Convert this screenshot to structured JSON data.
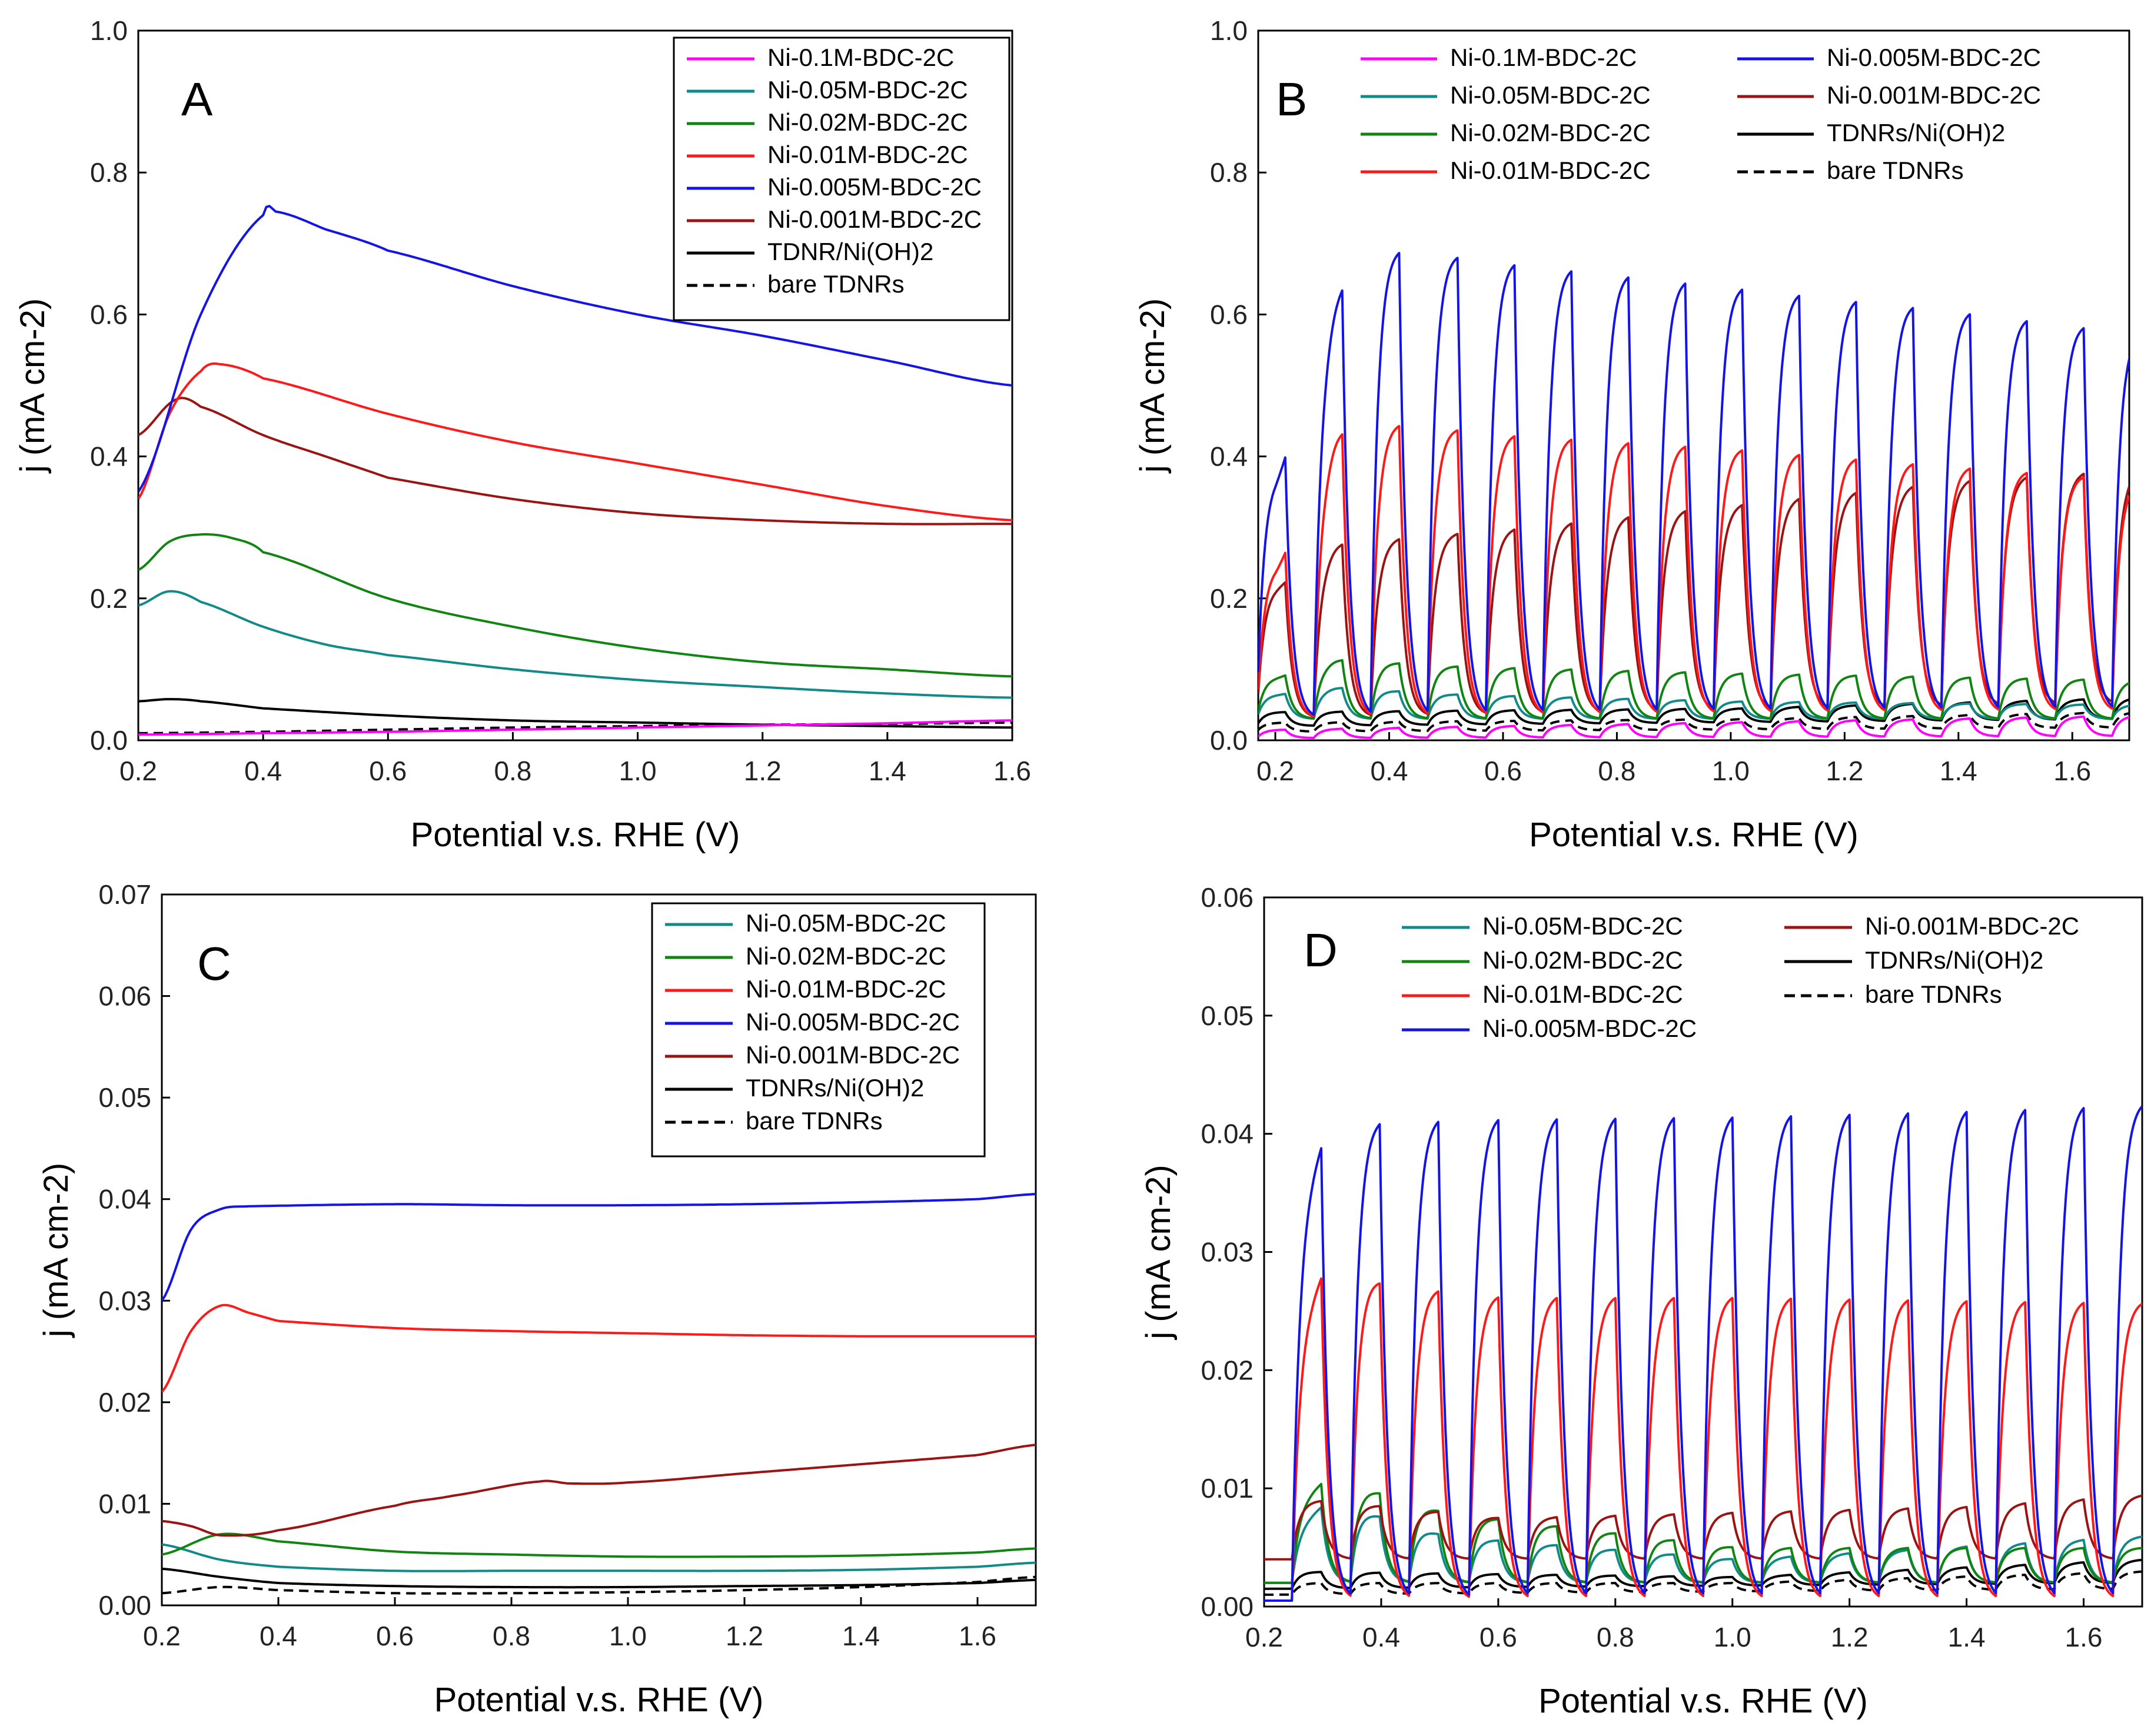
{
  "figure": {
    "panels": [
      "A",
      "B",
      "C",
      "D"
    ]
  },
  "series_defs": [
    {
      "id": "m01",
      "name": "Ni-0.1M-BDC-2C",
      "color": "#ff00ff",
      "dash": false
    },
    {
      "id": "m005",
      "name": "Ni-0.05M-BDC-2C",
      "color": "#138a8a",
      "dash": false
    },
    {
      "id": "m002",
      "name": "Ni-0.02M-BDC-2C",
      "color": "#128412",
      "dash": false
    },
    {
      "id": "m001",
      "name": "Ni-0.01M-BDC-2C",
      "color": "#ff1a1a",
      "dash": false
    },
    {
      "id": "m0005",
      "name": "Ni-0.005M-BDC-2C",
      "color": "#1414e6",
      "dash": false
    },
    {
      "id": "m0001",
      "name": "Ni-0.001M-BDC-2C",
      "color": "#9a1414",
      "dash": false
    },
    {
      "id": "tdnr",
      "name": "TDNRs/Ni(OH)2",
      "color": "#000000",
      "dash": false
    },
    {
      "id": "bare",
      "name": "bare TDNRs",
      "color": "#000000",
      "dash": true
    }
  ],
  "chart_data": [
    {
      "panel": "A",
      "type": "line",
      "xlabel": "Potential v.s. RHE (V)",
      "ylabel": "j (mA cm-2)",
      "xlim": [
        0.2,
        1.6
      ],
      "ylim": [
        0,
        1.0
      ],
      "xticks": [
        0.2,
        0.4,
        0.6,
        0.8,
        1.0,
        1.2,
        1.4,
        1.6
      ],
      "yticks": [
        0.0,
        0.2,
        0.4,
        0.6,
        0.8,
        1.0
      ],
      "xtick_labels": [
        "0.2",
        "0.4",
        "0.6",
        "0.8",
        "1.0",
        "1.2",
        "1.4",
        "1.6"
      ],
      "ytick_labels": [
        "0.0",
        "0.2",
        "0.4",
        "0.6",
        "0.8",
        "1.0"
      ],
      "legend": {
        "placement": "top-right",
        "entries": [
          "Ni-0.1M-BDC-2C",
          "Ni-0.05M-BDC-2C",
          "Ni-0.02M-BDC-2C",
          "Ni-0.01M-BDC-2C",
          "Ni-0.005M-BDC-2C",
          "Ni-0.001M-BDC-2C",
          "TDNR/Ni(OH)2",
          "bare TDNRs"
        ]
      },
      "series": [
        {
          "name": "Ni-0.1M-BDC-2C",
          "x": [
            0.2,
            0.4,
            0.6,
            0.8,
            1.0,
            1.2,
            1.4,
            1.6
          ],
          "values": [
            0.008,
            0.01,
            0.012,
            0.015,
            0.018,
            0.021,
            0.024,
            0.028
          ]
        },
        {
          "name": "Ni-0.05M-BDC-2C",
          "x": [
            0.2,
            0.25,
            0.3,
            0.4,
            0.5,
            0.6,
            0.8,
            1.0,
            1.2,
            1.4,
            1.6
          ],
          "values": [
            0.19,
            0.21,
            0.195,
            0.16,
            0.135,
            0.12,
            0.1,
            0.085,
            0.075,
            0.066,
            0.06
          ]
        },
        {
          "name": "Ni-0.02M-BDC-2C",
          "x": [
            0.2,
            0.25,
            0.3,
            0.35,
            0.4,
            0.6,
            0.8,
            1.0,
            1.2,
            1.4,
            1.6
          ],
          "values": [
            0.24,
            0.28,
            0.29,
            0.285,
            0.265,
            0.2,
            0.16,
            0.13,
            0.11,
            0.1,
            0.09
          ]
        },
        {
          "name": "Ni-0.01M-BDC-2C",
          "x": [
            0.2,
            0.25,
            0.3,
            0.33,
            0.4,
            0.6,
            0.8,
            1.0,
            1.2,
            1.4,
            1.6
          ],
          "values": [
            0.34,
            0.46,
            0.52,
            0.53,
            0.51,
            0.46,
            0.42,
            0.39,
            0.36,
            0.33,
            0.31
          ]
        },
        {
          "name": "Ni-0.005M-BDC-2C",
          "x": [
            0.2,
            0.3,
            0.4,
            0.42,
            0.5,
            0.6,
            0.8,
            1.0,
            1.2,
            1.4,
            1.6
          ],
          "values": [
            0.35,
            0.6,
            0.74,
            0.745,
            0.72,
            0.69,
            0.64,
            0.6,
            0.57,
            0.535,
            0.5
          ]
        },
        {
          "name": "Ni-0.001M-BDC-2C",
          "x": [
            0.2,
            0.26,
            0.3,
            0.4,
            0.5,
            0.6,
            0.8,
            1.0,
            1.2,
            1.4,
            1.6
          ],
          "values": [
            0.43,
            0.48,
            0.47,
            0.43,
            0.4,
            0.37,
            0.34,
            0.32,
            0.31,
            0.305,
            0.305
          ]
        },
        {
          "name": "TDNR/Ni(OH)2",
          "x": [
            0.2,
            0.25,
            0.3,
            0.4,
            0.6,
            0.8,
            1.0,
            1.2,
            1.4,
            1.6
          ],
          "values": [
            0.055,
            0.058,
            0.055,
            0.045,
            0.035,
            0.028,
            0.025,
            0.022,
            0.02,
            0.018
          ]
        },
        {
          "name": "bare TDNRs",
          "x": [
            0.2,
            0.4,
            0.6,
            0.8,
            1.0,
            1.2,
            1.4,
            1.6
          ],
          "values": [
            0.01,
            0.012,
            0.015,
            0.018,
            0.02,
            0.022,
            0.023,
            0.025
          ]
        }
      ]
    },
    {
      "panel": "B",
      "type": "line",
      "xlabel": "Potential v.s. RHE (V)",
      "ylabel": "j (mA cm-2)",
      "xlim": [
        0.17,
        1.7
      ],
      "ylim": [
        0,
        1.0
      ],
      "xticks": [
        0.2,
        0.4,
        0.6,
        0.8,
        1.0,
        1.2,
        1.4,
        1.6
      ],
      "yticks": [
        0.0,
        0.2,
        0.4,
        0.6,
        0.8,
        1.0
      ],
      "xtick_labels": [
        "0.2",
        "0.4",
        "0.6",
        "0.8",
        "1.0",
        "1.2",
        "1.4",
        "1.6"
      ],
      "ytick_labels": [
        "0.0",
        "0.2",
        "0.4",
        "0.6",
        "0.8",
        "1.0"
      ],
      "legend": {
        "placement": "top",
        "entries": [
          "Ni-0.1M-BDC-2C",
          "Ni-0.05M-BDC-2C",
          "Ni-0.02M-BDC-2C",
          "Ni-0.01M-BDC-2C",
          "Ni-0.005M-BDC-2C",
          "Ni-0.001M-BDC-2C",
          "TDNRs/Ni(OH)2",
          "bare TDNRs"
        ]
      },
      "chopped": {
        "first_on": 0.17,
        "period": 0.1,
        "duty": 0.5
      },
      "series": [
        {
          "name": "Ni-0.1M-BDC-2C",
          "on_x": [
            0.2,
            1.7
          ],
          "on_values": [
            0.015,
            0.035
          ],
          "dark_x": [
            0.2,
            1.7
          ],
          "dark_values": [
            0.003,
            0.006
          ]
        },
        {
          "name": "Ni-0.05M-BDC-2C",
          "on_x": [
            0.2,
            0.3,
            0.5,
            1.0,
            1.7
          ],
          "on_values": [
            0.065,
            0.075,
            0.065,
            0.055,
            0.05
          ],
          "dark_x": [
            0.2,
            1.7
          ],
          "dark_values": [
            0.03,
            0.03
          ]
        },
        {
          "name": "Ni-0.02M-BDC-2C",
          "on_x": [
            0.2,
            0.3,
            0.5,
            1.0,
            1.7
          ],
          "on_values": [
            0.09,
            0.115,
            0.105,
            0.095,
            0.085
          ],
          "dark_x": [
            0.2,
            1.7
          ],
          "dark_values": [
            0.03,
            0.03
          ]
        },
        {
          "name": "Ni-0.01M-BDC-2C",
          "on_x": [
            0.2,
            0.3,
            0.4,
            0.6,
            1.0,
            1.3,
            1.7
          ],
          "on_values": [
            0.25,
            0.44,
            0.45,
            0.435,
            0.415,
            0.395,
            0.37
          ],
          "dark_x": [
            0.2,
            1.7
          ],
          "dark_values": [
            0.03,
            0.04
          ]
        },
        {
          "name": "Ni-0.005M-BDC-2C",
          "on_x": [
            0.2,
            0.3,
            0.37,
            0.6,
            1.0,
            1.4,
            1.7
          ],
          "on_values": [
            0.38,
            0.64,
            0.7,
            0.68,
            0.645,
            0.61,
            0.58
          ],
          "dark_x": [
            0.2,
            1.7
          ],
          "dark_values": [
            0.03,
            0.04
          ]
        },
        {
          "name": "Ni-0.001M-BDC-2C",
          "on_x": [
            0.2,
            0.3,
            0.6,
            1.0,
            1.4,
            1.7
          ],
          "on_values": [
            0.22,
            0.28,
            0.3,
            0.335,
            0.37,
            0.385
          ],
          "dark_x": [
            0.2,
            1.7
          ],
          "dark_values": [
            0.03,
            0.05
          ]
        },
        {
          "name": "TDNRs/Ni(OH)2",
          "on_x": [
            0.2,
            1.0,
            1.7
          ],
          "on_values": [
            0.04,
            0.045,
            0.06
          ],
          "dark_x": [
            0.2,
            1.7
          ],
          "dark_values": [
            0.02,
            0.03
          ]
        },
        {
          "name": "bare TDNRs",
          "on_x": [
            0.2,
            1.0,
            1.7
          ],
          "on_values": [
            0.025,
            0.03,
            0.04
          ],
          "dark_x": [
            0.2,
            1.7
          ],
          "dark_values": [
            0.012,
            0.018
          ]
        }
      ]
    },
    {
      "panel": "C",
      "type": "line",
      "xlabel": "Potential v.s. RHE (V)",
      "ylabel": "j (mA cm-2)",
      "xlim": [
        0.2,
        1.7
      ],
      "ylim": [
        0,
        0.07
      ],
      "xticks": [
        0.2,
        0.4,
        0.6,
        0.8,
        1.0,
        1.2,
        1.4,
        1.6
      ],
      "yticks": [
        0.0,
        0.01,
        0.02,
        0.03,
        0.04,
        0.05,
        0.06,
        0.07
      ],
      "xtick_labels": [
        "0.2",
        "0.4",
        "0.6",
        "0.8",
        "1.0",
        "1.2",
        "1.4",
        "1.6"
      ],
      "ytick_labels": [
        "0.00",
        "0.01",
        "0.02",
        "0.03",
        "0.04",
        "0.05",
        "0.06",
        "0.07"
      ],
      "legend": {
        "placement": "top-right",
        "entries": [
          "Ni-0.05M-BDC-2C",
          "Ni-0.02M-BDC-2C",
          "Ni-0.01M-BDC-2C",
          "Ni-0.005M-BDC-2C",
          "Ni-0.001M-BDC-2C",
          "TDNRs/Ni(OH)2",
          "bare TDNRs"
        ]
      },
      "series": [
        {
          "name": "Ni-0.05M-BDC-2C",
          "x": [
            0.2,
            0.3,
            0.4,
            0.6,
            0.8,
            1.0,
            1.2,
            1.4,
            1.6,
            1.7
          ],
          "values": [
            0.006,
            0.0045,
            0.0038,
            0.0034,
            0.0034,
            0.0034,
            0.0034,
            0.0035,
            0.0038,
            0.0042
          ]
        },
        {
          "name": "Ni-0.02M-BDC-2C",
          "x": [
            0.2,
            0.3,
            0.4,
            0.6,
            0.8,
            1.0,
            1.2,
            1.4,
            1.6,
            1.7
          ],
          "values": [
            0.005,
            0.007,
            0.0063,
            0.0053,
            0.005,
            0.0048,
            0.0048,
            0.0049,
            0.0052,
            0.0056
          ]
        },
        {
          "name": "Ni-0.01M-BDC-2C",
          "x": [
            0.2,
            0.25,
            0.3,
            0.35,
            0.4,
            0.6,
            0.8,
            1.0,
            1.2,
            1.4,
            1.7
          ],
          "values": [
            0.021,
            0.027,
            0.0295,
            0.0288,
            0.028,
            0.0273,
            0.027,
            0.0268,
            0.0266,
            0.0265,
            0.0265
          ]
        },
        {
          "name": "Ni-0.005M-BDC-2C",
          "x": [
            0.2,
            0.25,
            0.3,
            0.35,
            0.6,
            0.8,
            1.0,
            1.2,
            1.4,
            1.6,
            1.7
          ],
          "values": [
            0.03,
            0.037,
            0.039,
            0.0393,
            0.0395,
            0.0394,
            0.0394,
            0.0395,
            0.0397,
            0.04,
            0.0405
          ]
        },
        {
          "name": "Ni-0.001M-BDC-2C",
          "x": [
            0.2,
            0.25,
            0.3,
            0.4,
            0.6,
            0.7,
            0.85,
            0.9,
            1.0,
            1.2,
            1.4,
            1.6,
            1.7
          ],
          "values": [
            0.0083,
            0.0078,
            0.0069,
            0.0074,
            0.0098,
            0.0108,
            0.0122,
            0.012,
            0.0121,
            0.013,
            0.0139,
            0.0148,
            0.0158
          ]
        },
        {
          "name": "TDNRs/Ni(OH)2",
          "x": [
            0.2,
            0.3,
            0.4,
            0.6,
            0.8,
            1.0,
            1.2,
            1.4,
            1.6,
            1.7
          ],
          "values": [
            0.0036,
            0.0028,
            0.0022,
            0.0019,
            0.0018,
            0.0018,
            0.0019,
            0.002,
            0.0022,
            0.0025
          ]
        },
        {
          "name": "bare TDNRs",
          "x": [
            0.2,
            0.3,
            0.4,
            0.6,
            0.8,
            1.0,
            1.2,
            1.4,
            1.6,
            1.7
          ],
          "values": [
            0.0012,
            0.0018,
            0.0015,
            0.0012,
            0.0012,
            0.0013,
            0.0015,
            0.0018,
            0.0023,
            0.0028
          ]
        }
      ]
    },
    {
      "panel": "D",
      "type": "line",
      "xlabel": "Potential v.s. RHE (V)",
      "ylabel": "j (mA cm-2)",
      "xlim": [
        0.2,
        1.7
      ],
      "ylim": [
        0,
        0.06
      ],
      "xticks": [
        0.2,
        0.4,
        0.6,
        0.8,
        1.0,
        1.2,
        1.4,
        1.6
      ],
      "yticks": [
        0.0,
        0.01,
        0.02,
        0.03,
        0.04,
        0.05,
        0.06
      ],
      "xtick_labels": [
        "0.2",
        "0.4",
        "0.6",
        "0.8",
        "1.0",
        "1.2",
        "1.4",
        "1.6"
      ],
      "ytick_labels": [
        "0.00",
        "0.01",
        "0.02",
        "0.03",
        "0.04",
        "0.05",
        "0.06"
      ],
      "legend": {
        "placement": "top",
        "entries": [
          "Ni-0.05M-BDC-2C",
          "Ni-0.02M-BDC-2C",
          "Ni-0.01M-BDC-2C",
          "Ni-0.005M-BDC-2C",
          "Ni-0.001M-BDC-2C",
          "TDNRs/Ni(OH)2",
          "bare TDNRs"
        ]
      },
      "chopped": {
        "first_on": 0.15,
        "period": 0.1,
        "duty": 0.5
      },
      "series": [
        {
          "name": "Ni-0.05M-BDC-2C",
          "on_x": [
            0.2,
            0.3,
            0.5,
            1.0,
            1.7
          ],
          "on_values": [
            0.005,
            0.009,
            0.006,
            0.004,
            0.006
          ],
          "dark_x": [
            0.2,
            1.7
          ],
          "dark_values": [
            0.002,
            0.002
          ]
        },
        {
          "name": "Ni-0.02M-BDC-2C",
          "on_x": [
            0.2,
            0.3,
            0.5,
            1.0,
            1.7
          ],
          "on_values": [
            0.007,
            0.011,
            0.008,
            0.005,
            0.005
          ],
          "dark_x": [
            0.2,
            1.7
          ],
          "dark_values": [
            0.002,
            0.002
          ]
        },
        {
          "name": "Ni-0.01M-BDC-2C",
          "on_x": [
            0.2,
            0.3,
            0.4,
            0.6,
            1.0,
            1.7
          ],
          "on_values": [
            0.019,
            0.0295,
            0.0275,
            0.0265,
            0.0265,
            0.026
          ],
          "dark_x": [
            0.2,
            1.7
          ],
          "dark_values": [
            0.0005,
            0.0005
          ]
        },
        {
          "name": "Ni-0.005M-BDC-2C",
          "on_x": [
            0.2,
            0.3,
            0.4,
            0.6,
            1.0,
            1.4,
            1.7
          ],
          "on_values": [
            0.028,
            0.041,
            0.0415,
            0.0418,
            0.042,
            0.0425,
            0.043
          ],
          "dark_x": [
            0.2,
            1.7
          ],
          "dark_values": [
            0.0005,
            0.0005
          ]
        },
        {
          "name": "Ni-0.001M-BDC-2C",
          "on_x": [
            0.2,
            0.3,
            0.6,
            1.0,
            1.4,
            1.7
          ],
          "on_values": [
            0.009,
            0.009,
            0.0075,
            0.008,
            0.0085,
            0.0095
          ],
          "dark_x": [
            0.2,
            1.7
          ],
          "dark_values": [
            0.004,
            0.004
          ]
        },
        {
          "name": "TDNRs/Ni(OH)2",
          "on_x": [
            0.2,
            1.0,
            1.7
          ],
          "on_values": [
            0.003,
            0.0025,
            0.004
          ],
          "dark_x": [
            0.2,
            1.7
          ],
          "dark_values": [
            0.0015,
            0.002
          ]
        },
        {
          "name": "bare TDNRs",
          "on_x": [
            0.2,
            1.0,
            1.7
          ],
          "on_values": [
            0.002,
            0.002,
            0.003
          ],
          "dark_x": [
            0.2,
            1.7
          ],
          "dark_values": [
            0.001,
            0.0015
          ]
        }
      ]
    }
  ]
}
